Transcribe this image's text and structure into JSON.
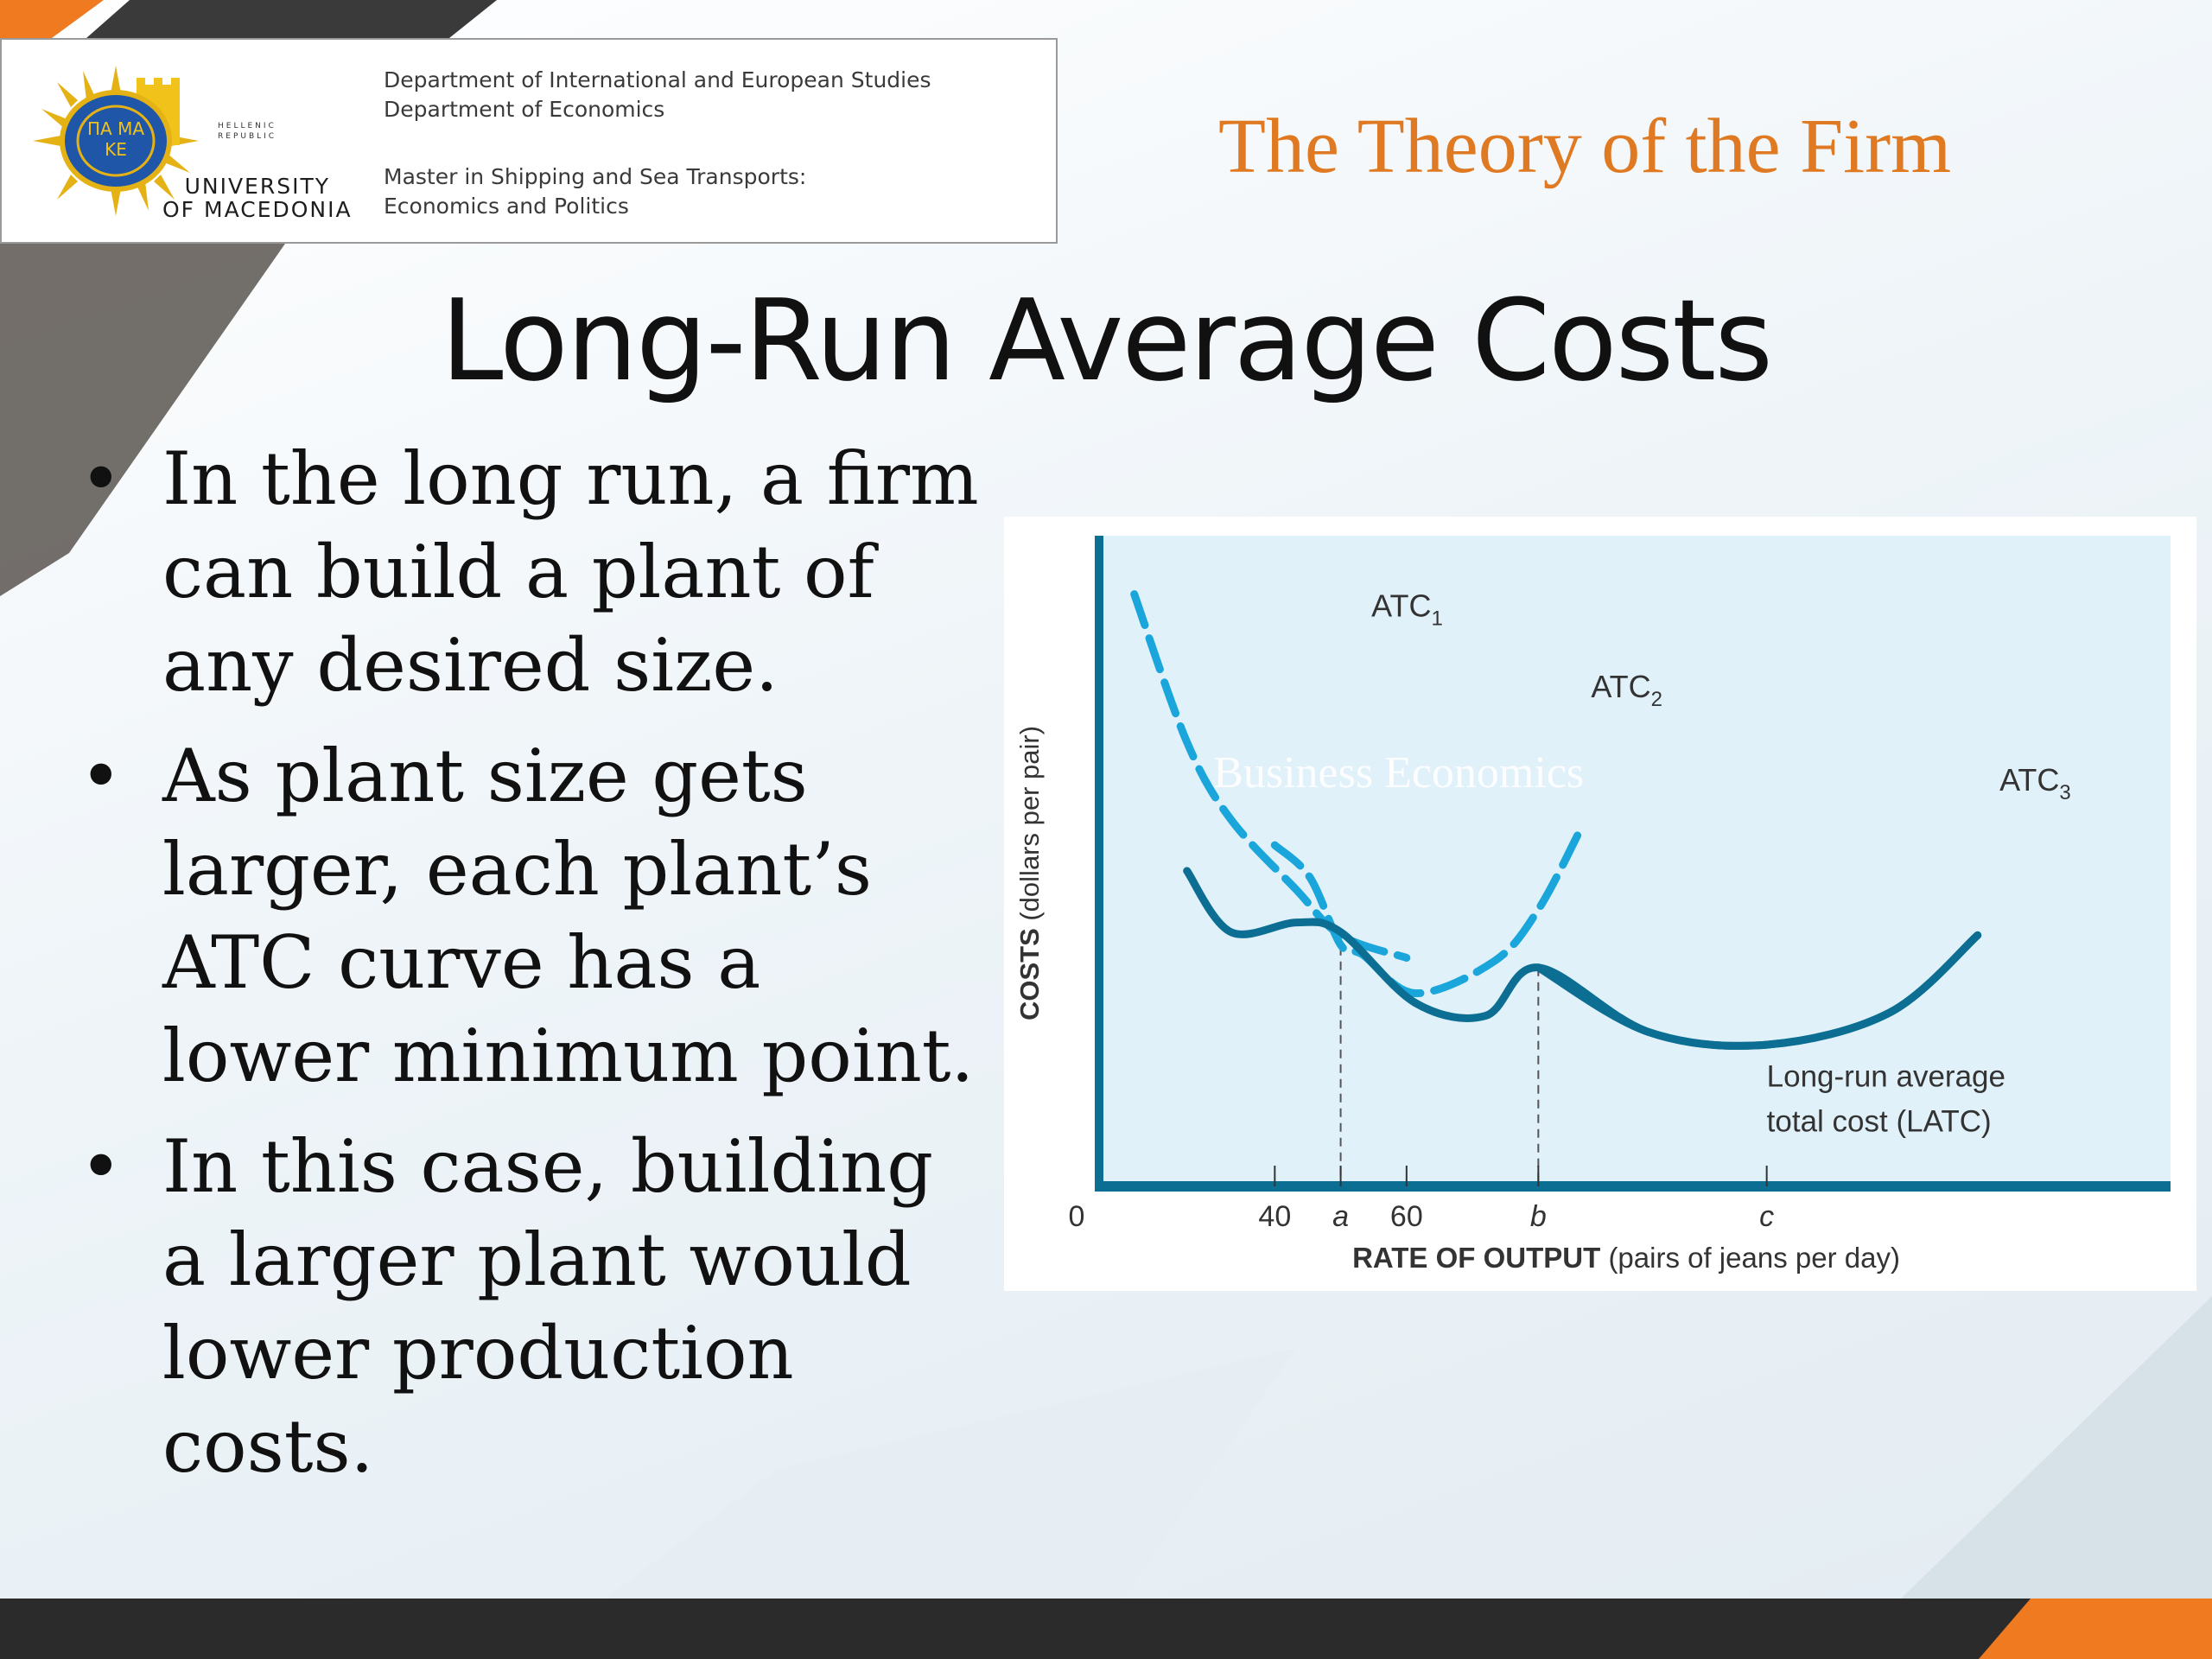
{
  "header": {
    "university_name": "UNIVERSITY\nOF MACEDONIA",
    "hellenic": "HELLENIC\nREPUBLIC",
    "logo_text": "ΠΑ ΜΑ ΚΕ",
    "department_lines": [
      "Department of International and European Studies",
      "Department of Economics"
    ],
    "program_lines": [
      "Master in Shipping and Sea Transports:",
      "Economics and Politics"
    ],
    "topic": "The Theory of the Firm"
  },
  "slide": {
    "title": "Long-Run Average Costs",
    "bullets": [
      "In the long run, a firm can build a plant of any desired size.",
      "As plant size gets larger, each plant’s ATC curve has a lower minimum point.",
      "In this case, building a larger plant would lower production costs."
    ],
    "bullet_symbol": "•"
  },
  "chart_data": {
    "type": "line",
    "watermark": "Business Economics",
    "ylabel": "COSTS (dollars per pair)",
    "xlabel_bold": "RATE OF OUTPUT",
    "xlabel_rest": "(pairs of jeans per day)",
    "x_ticks": [
      "0",
      "40",
      "a",
      "60",
      "b",
      "c"
    ],
    "series": [
      {
        "name": "ATC1",
        "label_base": "ATC",
        "label_sub": "1",
        "style": "dashed",
        "color": "#1aa6da",
        "points": [
          [
            8,
            9.2
          ],
          [
            20,
            6.9
          ],
          [
            30,
            5.7
          ],
          [
            45,
            4.6
          ],
          [
            55,
            3.9
          ],
          [
            70,
            3.55
          ]
        ]
      },
      {
        "name": "ATC2",
        "label_base": "ATC",
        "label_sub": "2",
        "style": "dashed",
        "color": "#1aa6da",
        "points": [
          [
            40,
            5.3
          ],
          [
            48,
            4.8
          ],
          [
            55,
            3.75
          ],
          [
            60,
            3.6
          ],
          [
            72,
            3.0
          ],
          [
            90,
            3.5
          ],
          [
            100,
            4.3
          ],
          [
            110,
            5.6
          ]
        ]
      },
      {
        "name": "ATC3",
        "label_base": "ATC",
        "label_sub": "3",
        "style": "solid",
        "color": "#0b6e92",
        "points": [
          [
            100,
            3.4
          ],
          [
            125,
            2.4
          ],
          [
            152,
            2.2
          ],
          [
            180,
            2.7
          ],
          [
            200,
            3.9
          ]
        ]
      },
      {
        "name": "Long-run average total cost (LATC)",
        "style": "solid",
        "color": "#0b6e92",
        "points": [
          [
            20,
            4.9
          ],
          [
            30,
            3.95
          ],
          [
            45,
            4.1
          ],
          [
            55,
            3.95
          ],
          [
            72,
            2.85
          ],
          [
            88,
            2.65
          ],
          [
            100,
            3.4
          ],
          [
            125,
            2.4
          ],
          [
            152,
            2.2
          ],
          [
            180,
            2.7
          ],
          [
            200,
            3.9
          ]
        ]
      }
    ],
    "latc_label": [
      "Long-run average",
      "total cost (LATC)"
    ],
    "reference_points": [
      {
        "x_label": "a",
        "x": 55
      },
      {
        "x_label": "b",
        "x": 100
      }
    ],
    "grid": false
  },
  "colors": {
    "accent_orange": "#e07a22",
    "dark_band": "#2b2b2b",
    "chart_bg": "#e1f1fa"
  }
}
